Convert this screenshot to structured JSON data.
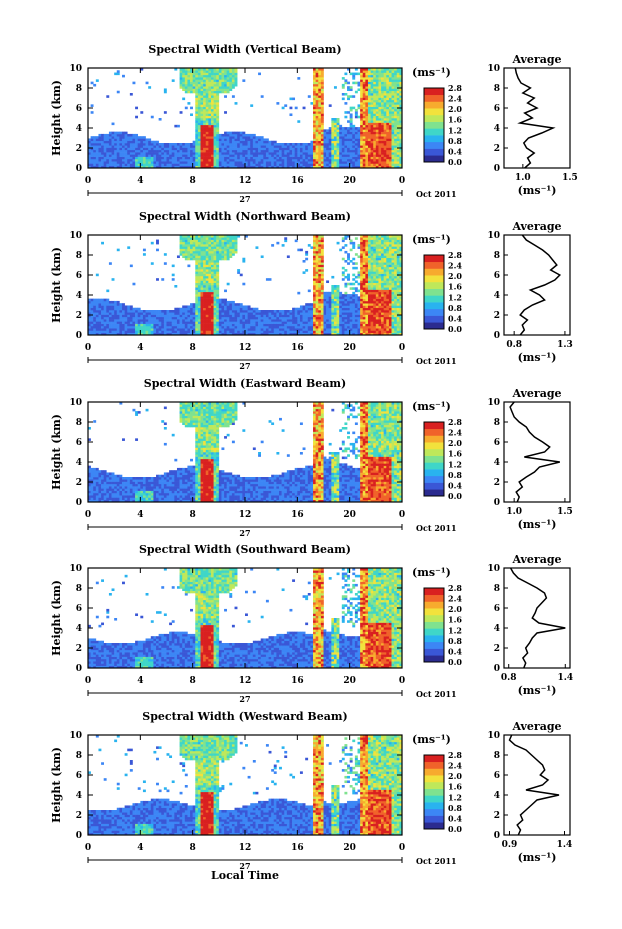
{
  "figure": {
    "x_title": "Local Time",
    "colorbar_ticks": [
      "2.8",
      "2.4",
      "2.0",
      "1.6",
      "1.2",
      "0.8",
      "0.4",
      "0.0"
    ],
    "colorbar_unit": "(ms⁻¹)",
    "colors": [
      "#2b2b8f",
      "#3a57d6",
      "#3c86f5",
      "#29b3ef",
      "#3fd6c8",
      "#7fe28f",
      "#bfe85a",
      "#f2e23c",
      "#f7ab2e",
      "#f0632a",
      "#d92020"
    ]
  },
  "chart_data": [
    {
      "type": "heatmap",
      "title": "Spectral Width (Vertical Beam)",
      "ylabel": "Height (km)",
      "ylim": [
        0,
        10
      ],
      "yticks": [
        "0",
        "2",
        "4",
        "6",
        "8",
        "10"
      ],
      "xlim": [
        0,
        24
      ],
      "xticks": [
        "0",
        "4",
        "8",
        "12",
        "16",
        "20",
        "0"
      ],
      "day_label": "27",
      "month_label": "Oct 2011",
      "cbar_range": [
        0,
        2.8
      ],
      "profile": {
        "title": "Average",
        "xticks": [
          "1.0",
          "1.5"
        ],
        "xlabel": "(ms⁻¹)",
        "yticks": [
          "0",
          "2",
          "4",
          "6",
          "8",
          "10"
        ],
        "xlim": [
          0.8,
          1.5
        ],
        "height": [
          0,
          0.5,
          1,
          1.5,
          2,
          2.5,
          3,
          3.5,
          4,
          4.5,
          5,
          5.5,
          6,
          6.5,
          7,
          7.5,
          8,
          8.5,
          9,
          9.5,
          10
        ],
        "values": [
          1.02,
          1.08,
          1.05,
          1.12,
          1.04,
          1.01,
          1.06,
          1.2,
          1.32,
          0.97,
          1.1,
          1.02,
          1.15,
          1.05,
          1.12,
          1.0,
          1.08,
          0.98,
          0.95,
          0.93,
          0.92
        ]
      }
    },
    {
      "type": "heatmap",
      "title": "Spectral Width (Northward Beam)",
      "ylabel": "Height (km)",
      "ylim": [
        0,
        10
      ],
      "yticks": [
        "0",
        "2",
        "4",
        "6",
        "8",
        "10"
      ],
      "xlim": [
        0,
        24
      ],
      "xticks": [
        "0",
        "4",
        "8",
        "12",
        "16",
        "20",
        "0"
      ],
      "day_label": "27",
      "month_label": "Oct 2011",
      "cbar_range": [
        0,
        2.8
      ],
      "profile": {
        "title": "Average",
        "xticks": [
          "0.8",
          "1.3"
        ],
        "xlabel": "(ms⁻¹)",
        "yticks": [
          "0",
          "2",
          "4",
          "6",
          "8",
          "10"
        ],
        "xlim": [
          0.7,
          1.35
        ],
        "height": [
          0,
          0.5,
          1,
          1.5,
          2,
          2.5,
          3,
          3.5,
          4,
          4.5,
          5,
          5.5,
          6,
          6.5,
          7,
          7.5,
          8,
          8.5,
          9,
          9.5,
          10
        ],
        "values": [
          0.86,
          0.9,
          0.88,
          0.93,
          0.86,
          0.9,
          0.98,
          1.1,
          1.05,
          0.96,
          1.1,
          1.2,
          1.25,
          1.16,
          1.22,
          1.18,
          1.14,
          1.08,
          1.0,
          0.92,
          0.88
        ]
      }
    },
    {
      "type": "heatmap",
      "title": "Spectral Width (Eastward Beam)",
      "ylabel": "Height (km)",
      "ylim": [
        0,
        10
      ],
      "yticks": [
        "0",
        "2",
        "4",
        "6",
        "8",
        "10"
      ],
      "xlim": [
        0,
        24
      ],
      "xticks": [
        "0",
        "4",
        "8",
        "12",
        "16",
        "20",
        "0"
      ],
      "day_label": "27",
      "month_label": "Oct 2011",
      "cbar_range": [
        0,
        2.8
      ],
      "profile": {
        "title": "Average",
        "xticks": [
          "1.0",
          "1.5"
        ],
        "xlabel": "(ms⁻¹)",
        "yticks": [
          "0",
          "2",
          "4",
          "6",
          "8",
          "10"
        ],
        "xlim": [
          0.9,
          1.55
        ],
        "height": [
          0,
          0.5,
          1,
          1.5,
          2,
          2.5,
          3,
          3.5,
          4,
          4.5,
          5,
          5.5,
          6,
          6.5,
          7,
          7.5,
          8,
          8.5,
          9,
          9.5,
          10
        ],
        "values": [
          1.03,
          1.05,
          1.02,
          1.08,
          1.05,
          1.12,
          1.2,
          1.25,
          1.45,
          1.1,
          1.3,
          1.35,
          1.28,
          1.2,
          1.15,
          1.12,
          1.05,
          1.0,
          0.98,
          0.96,
          1.0
        ]
      }
    },
    {
      "type": "heatmap",
      "title": "Spectral Width (Southward Beam)",
      "ylabel": "Height (km)",
      "ylim": [
        0,
        10
      ],
      "yticks": [
        "0",
        "2",
        "4",
        "6",
        "8",
        "10"
      ],
      "xlim": [
        0,
        24
      ],
      "xticks": [
        "0",
        "4",
        "8",
        "12",
        "16",
        "20",
        "0"
      ],
      "day_label": "27",
      "month_label": "Oct 2011",
      "cbar_range": [
        0,
        2.8
      ],
      "profile": {
        "title": "Average",
        "xticks": [
          "0.8",
          "1.4"
        ],
        "xlabel": "(ms⁻¹)",
        "yticks": [
          "0",
          "2",
          "4",
          "6",
          "8",
          "10"
        ],
        "xlim": [
          0.75,
          1.45
        ],
        "height": [
          0,
          0.5,
          1,
          1.5,
          2,
          2.5,
          3,
          3.5,
          4,
          4.5,
          5,
          5.5,
          6,
          6.5,
          7,
          7.5,
          8,
          8.5,
          9,
          9.5,
          10
        ],
        "values": [
          0.96,
          0.98,
          0.95,
          1.0,
          0.98,
          1.02,
          1.05,
          1.1,
          1.4,
          1.12,
          1.05,
          1.08,
          1.1,
          1.15,
          1.2,
          1.18,
          1.1,
          1.0,
          0.9,
          0.85,
          0.82
        ]
      }
    },
    {
      "type": "heatmap",
      "title": "Spectral Width (Westward Beam)",
      "ylabel": "Height (km)",
      "ylim": [
        0,
        10
      ],
      "yticks": [
        "0",
        "2",
        "4",
        "6",
        "8",
        "10"
      ],
      "xlim": [
        0,
        24
      ],
      "xticks": [
        "0",
        "4",
        "8",
        "12",
        "16",
        "20",
        "0"
      ],
      "day_label": "27",
      "month_label": "Oct 2011",
      "cbar_range": [
        0,
        2.8
      ],
      "profile": {
        "title": "Average",
        "xticks": [
          "0.9",
          "1.4"
        ],
        "xlabel": "(ms⁻¹)",
        "yticks": [
          "0",
          "2",
          "4",
          "6",
          "8",
          "10"
        ],
        "xlim": [
          0.85,
          1.45
        ],
        "height": [
          0,
          0.5,
          1,
          1.5,
          2,
          2.5,
          3,
          3.5,
          4,
          4.5,
          5,
          5.5,
          6,
          6.5,
          7,
          7.5,
          8,
          8.5,
          9,
          9.5,
          10
        ],
        "values": [
          0.98,
          1.0,
          0.97,
          1.02,
          1.0,
          1.05,
          1.1,
          1.15,
          1.35,
          1.05,
          1.2,
          1.25,
          1.18,
          1.22,
          1.2,
          1.15,
          1.1,
          1.05,
          0.95,
          0.9,
          0.92
        ]
      }
    }
  ]
}
